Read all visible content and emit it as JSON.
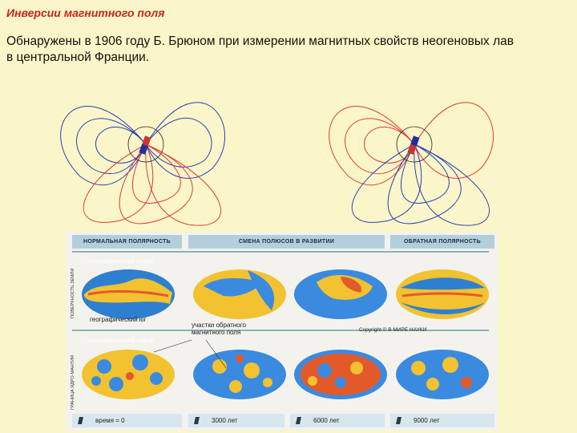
{
  "slide": {
    "title": "Инверсии магнитного поля",
    "subtitle": "Обнаружены в 1906 году Б. Брюном при измерении магнитных свойств неогеновых лав в центральной Франции."
  },
  "colors": {
    "title": "#c0271c",
    "field_blue": "#2b3fb5",
    "field_red": "#e03a3a",
    "ocean": "#2f6fc9",
    "land": "#f2c230"
  },
  "panel": {
    "headers": [
      "НОРМАЛЬНАЯ ПОЛЯРНОСТЬ",
      "СМЕНА ПОЛЮСОВ В РАЗВИТИИ",
      "ОБРАТНАЯ ПОЛЯРНОСТЬ"
    ],
    "row_labels": [
      "ПОВЕРХНОСТЬ ЗЕМЛИ",
      "ГРАНИЦА ЯДРО-МАНТИЯ"
    ],
    "geo_north_1": "географический север",
    "geo_south": "географический юг",
    "geo_north_2": "географический север",
    "reverse_patches": "участки обратного магнитного поля",
    "copyright": "Copyright © В МИРЕ НАУКИ",
    "times": [
      "время = 0",
      "3000 лет",
      "6000 лет",
      "9000 лет"
    ]
  }
}
